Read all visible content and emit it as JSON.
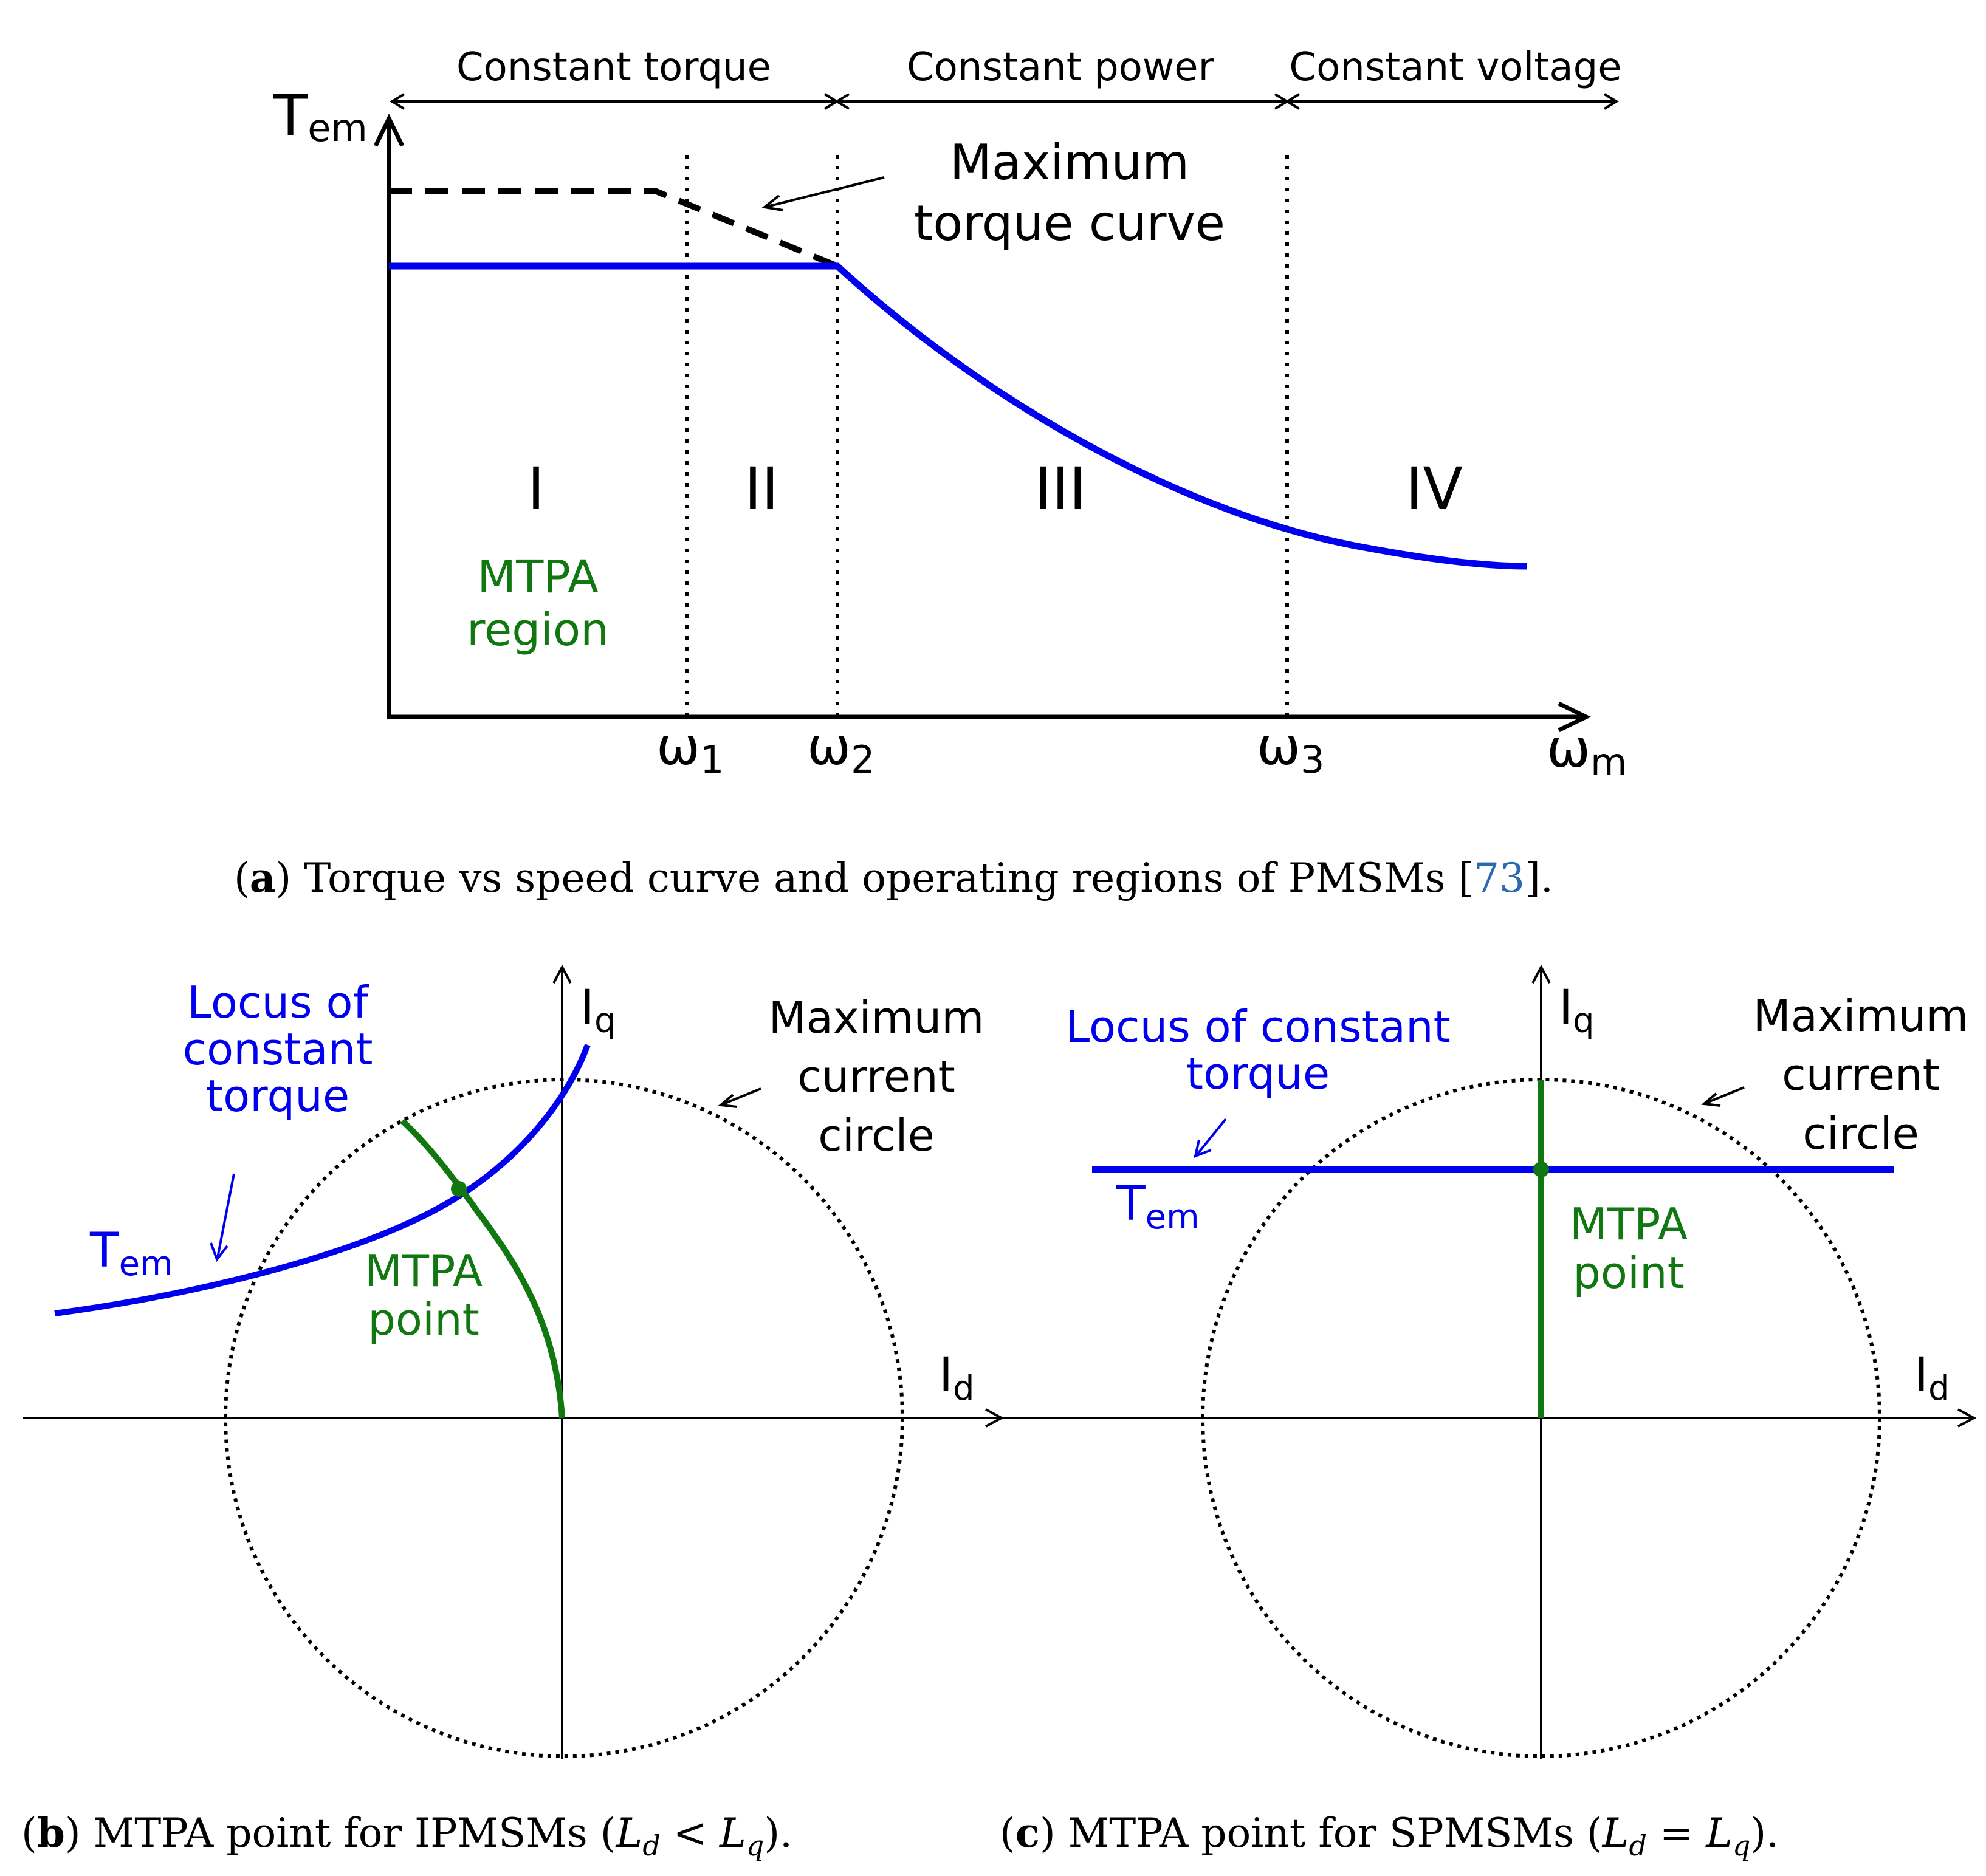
{
  "colors": {
    "black": "#000000",
    "blue": "#0000ee",
    "green": "#117711",
    "link": "#2a6ab0"
  },
  "panel_a": {
    "regions_top": {
      "constant_torque": "Constant torque",
      "constant_power": "Constant power",
      "constant_voltage": "Constant voltage"
    },
    "y_axis": {
      "label": "T",
      "sub": "em"
    },
    "x_axis": {
      "label": "ω",
      "sub": "m"
    },
    "ticks": [
      {
        "label": "ω",
        "sub": "1"
      },
      {
        "label": "ω",
        "sub": "2"
      },
      {
        "label": "ω",
        "sub": "3"
      }
    ],
    "max_torque_label": [
      "Maximum",
      "torque curve"
    ],
    "region_numerals": [
      "I",
      "II",
      "III",
      "IV"
    ],
    "mtpa_region_label": [
      "MTPA",
      "region"
    ],
    "caption": {
      "letter": "a",
      "text": " Torque vs speed curve and operating regions of PMSMs [",
      "ref": "73",
      "end": "]."
    }
  },
  "panel_b": {
    "iq": {
      "label": "I",
      "sub": "q"
    },
    "id": {
      "label": "I",
      "sub": "d"
    },
    "locus_label": [
      "Locus of",
      "constant",
      "torque"
    ],
    "tem": {
      "label": "T",
      "sub": "em"
    },
    "max_current_label": [
      "Maximum",
      "current",
      "circle"
    ],
    "mtpa_point_label": [
      "MTPA",
      "point"
    ],
    "caption": {
      "letter": "b",
      "text": " MTPA point for IPMSMs (",
      "ld": "L",
      "ld_sub": "d",
      "op": " < ",
      "lq": "L",
      "lq_sub": "q",
      "end": ")."
    }
  },
  "panel_c": {
    "iq": {
      "label": "I",
      "sub": "q"
    },
    "id": {
      "label": "I",
      "sub": "d"
    },
    "locus_label": [
      "Locus of constant",
      "torque"
    ],
    "tem": {
      "label": "T",
      "sub": "em"
    },
    "max_current_label": [
      "Maximum",
      "current",
      "circle"
    ],
    "mtpa_point_label": [
      "MTPA",
      "point"
    ],
    "caption": {
      "letter": "c",
      "text": " MTPA point for SPMSMs (",
      "ld": "L",
      "ld_sub": "d",
      "op": " = ",
      "lq": "L",
      "lq_sub": "q",
      "end": ")."
    }
  }
}
